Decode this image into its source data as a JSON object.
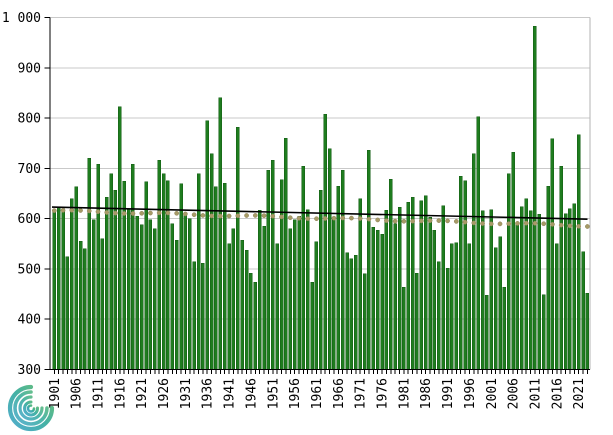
{
  "chart_data": {
    "type": "bar",
    "title": "",
    "x_start_year": 1901,
    "x_end_year": 2023,
    "years": [
      1901,
      1902,
      1903,
      1904,
      1905,
      1906,
      1907,
      1908,
      1909,
      1910,
      1911,
      1912,
      1913,
      1914,
      1915,
      1916,
      1917,
      1918,
      1919,
      1920,
      1921,
      1922,
      1923,
      1924,
      1925,
      1926,
      1927,
      1928,
      1929,
      1930,
      1931,
      1932,
      1933,
      1934,
      1935,
      1936,
      1937,
      1938,
      1939,
      1940,
      1941,
      1942,
      1943,
      1944,
      1945,
      1946,
      1947,
      1948,
      1949,
      1950,
      1951,
      1952,
      1953,
      1954,
      1955,
      1956,
      1957,
      1958,
      1959,
      1960,
      1961,
      1962,
      1963,
      1964,
      1965,
      1966,
      1967,
      1968,
      1969,
      1970,
      1971,
      1972,
      1973,
      1974,
      1975,
      1976,
      1977,
      1978,
      1979,
      1980,
      1981,
      1982,
      1983,
      1984,
      1985,
      1986,
      1987,
      1988,
      1989,
      1990,
      1991,
      1992,
      1993,
      1994,
      1995,
      1996,
      1997,
      1998,
      1999,
      2000,
      2001,
      2002,
      2003,
      2004,
      2005,
      2006,
      2007,
      2008,
      2009,
      2010,
      2011,
      2012,
      2013,
      2014,
      2015,
      2016,
      2017,
      2018,
      2019,
      2020,
      2021,
      2022,
      2023
    ],
    "values": [
      615,
      623,
      620,
      524,
      640,
      663,
      555,
      540,
      720,
      598,
      708,
      560,
      643,
      689,
      656,
      823,
      674,
      620,
      708,
      605,
      588,
      673,
      598,
      580,
      716,
      689,
      675,
      590,
      557,
      669,
      607,
      600,
      514,
      689,
      511,
      795,
      729,
      663,
      840,
      670,
      550,
      580,
      782,
      557,
      537,
      491,
      474,
      617,
      585,
      696,
      716,
      550,
      677,
      760,
      580,
      598,
      605,
      704,
      618,
      474,
      554,
      656,
      808,
      739,
      603,
      664,
      696,
      532,
      520,
      527,
      640,
      490,
      736,
      583,
      577,
      569,
      617,
      678,
      590,
      623,
      464,
      633,
      643,
      491,
      636,
      646,
      603,
      577,
      514,
      626,
      501,
      550,
      552,
      684,
      675,
      550,
      729,
      803,
      616,
      448,
      618,
      542,
      564,
      464,
      689,
      732,
      590,
      624,
      640,
      616,
      983,
      609,
      449,
      664,
      759,
      550,
      704,
      610,
      620,
      630,
      767,
      534,
      452
    ],
    "y_axis": {
      "min": 300,
      "max": 1000,
      "step": 100,
      "tick_labels_top_to_bottom": [
        "1 000",
        "900",
        "800",
        "700",
        "600",
        "500",
        "400",
        "300"
      ]
    },
    "x_axis": {
      "tick_label_years": [
        1901,
        1906,
        1911,
        1916,
        1921,
        1926,
        1931,
        1936,
        1941,
        1946,
        1951,
        1956,
        1961,
        1966,
        1971,
        1976,
        1981,
        1986,
        1991,
        1996,
        2001,
        2006,
        2011,
        2016,
        2021
      ],
      "label_rotation_degrees": -90
    },
    "trend_line": {
      "start_value": 623,
      "end_value": 599,
      "color": "#000000"
    },
    "dotted_smoothed_line": {
      "start_value": 616,
      "end_value": 586,
      "interval_years": 2,
      "color": "#a79b67"
    },
    "legend": "none",
    "grid": "horizontal",
    "colors": {
      "bar": "#1f7c1f",
      "bar_edge": "#135c13",
      "bar_highlight": "#2f9032",
      "gridline": "#c9c9c9",
      "plot_border": "#b3b3b3",
      "axis": "#000000",
      "dot_fill": "#a79b67",
      "dot_edge": "#8f835a",
      "background": "#ffffff"
    },
    "logo": {
      "name": "spiral-swirl-logo",
      "color_top": "#6abf69",
      "color_mid": "#2ba3a0",
      "color_bottom": "#4aa9cc"
    }
  }
}
